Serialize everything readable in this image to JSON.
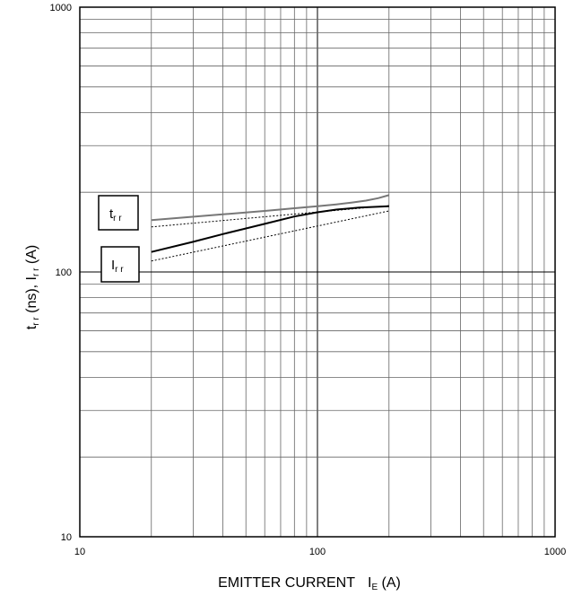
{
  "chart_data": {
    "type": "line",
    "x_scale": "log",
    "y_scale": "log",
    "xlim": [
      10,
      1000
    ],
    "ylim": [
      10,
      1000
    ],
    "grid": true,
    "x_ticks": [
      "10",
      "100",
      "1000"
    ],
    "y_ticks": [
      "10",
      "100",
      "1000"
    ],
    "xlabel": {
      "main": "EMITTER CURRENT",
      "symbol": "I",
      "subscript": "E",
      "unit": " (A)"
    },
    "ylabel": {
      "t": "t",
      "t_sub": "r r",
      "mid": " (ns), ",
      "i": "I",
      "i_sub": "r r",
      "unit": " (A)"
    },
    "series": [
      {
        "name": "trr",
        "legend_main": "t",
        "legend_sub": "r r",
        "color": "#777777",
        "style": "solid",
        "x": [
          20,
          40,
          60,
          80,
          100,
          120,
          140,
          160,
          180,
          200
        ],
        "y": [
          157,
          165,
          170,
          174,
          177,
          180,
          183,
          186,
          190,
          195
        ]
      },
      {
        "name": "trr-dotted",
        "color": "#000000",
        "style": "dotted",
        "x": [
          20,
          200
        ],
        "y": [
          148,
          178
        ]
      },
      {
        "name": "Irr",
        "legend_main": "I",
        "legend_sub": "r r",
        "color": "#000000",
        "style": "solid",
        "x": [
          20,
          30,
          40,
          60,
          80,
          100,
          120,
          150,
          200
        ],
        "y": [
          119,
          130,
          139,
          152,
          162,
          168,
          172,
          175,
          177
        ]
      },
      {
        "name": "Irr-dotted",
        "color": "#000000",
        "style": "dotted",
        "x": [
          20,
          200
        ],
        "y": [
          110,
          170
        ]
      }
    ]
  }
}
